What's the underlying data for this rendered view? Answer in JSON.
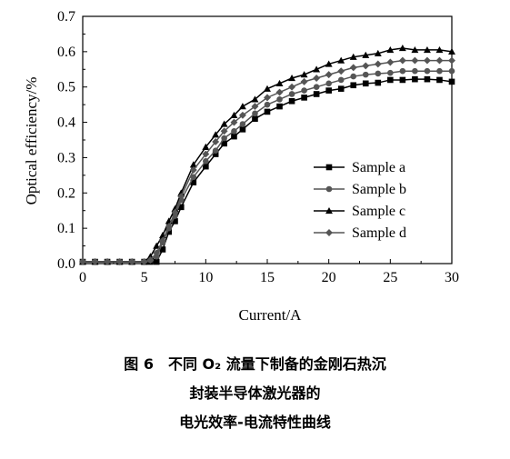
{
  "chart_data": {
    "type": "line",
    "xlabel": "Current/A",
    "ylabel": "Optical efficiency/%",
    "xlim": [
      0,
      30
    ],
    "ylim": [
      0,
      0.7
    ],
    "xticks": [
      "0",
      "5",
      "10",
      "15",
      "20",
      "25",
      "30"
    ],
    "yticks": [
      "0.0",
      "0.1",
      "0.2",
      "0.3",
      "0.4",
      "0.5",
      "0.6",
      "0.7"
    ],
    "grid": false,
    "legend_position": "center-right",
    "x": [
      0,
      1,
      2,
      3,
      4,
      5,
      5.5,
      6,
      6.5,
      7,
      7.5,
      8,
      9,
      10,
      10.8,
      11.5,
      12.3,
      13,
      14,
      15,
      16,
      17,
      18,
      19,
      20,
      21,
      22,
      23,
      24,
      25,
      26,
      27,
      28,
      29,
      30
    ],
    "series": [
      {
        "name": "Sample a",
        "marker": "square",
        "color": "#000000",
        "values": [
          0.005,
          0.005,
          0.005,
          0.005,
          0.005,
          0.005,
          0.005,
          0.005,
          0.04,
          0.09,
          0.12,
          0.16,
          0.23,
          0.275,
          0.31,
          0.34,
          0.36,
          0.38,
          0.41,
          0.43,
          0.445,
          0.46,
          0.47,
          0.48,
          0.49,
          0.495,
          0.505,
          0.51,
          0.512,
          0.52,
          0.52,
          0.522,
          0.522,
          0.52,
          0.515
        ]
      },
      {
        "name": "Sample b",
        "marker": "circle",
        "color": "#555555",
        "values": [
          0.005,
          0.005,
          0.005,
          0.005,
          0.005,
          0.005,
          0.01,
          0.02,
          0.06,
          0.1,
          0.135,
          0.18,
          0.245,
          0.29,
          0.32,
          0.355,
          0.375,
          0.395,
          0.425,
          0.45,
          0.465,
          0.48,
          0.49,
          0.5,
          0.51,
          0.52,
          0.53,
          0.535,
          0.538,
          0.54,
          0.545,
          0.545,
          0.545,
          0.545,
          0.545
        ]
      },
      {
        "name": "Sample c",
        "marker": "triangle",
        "color": "#000000",
        "values": [
          0.005,
          0.005,
          0.005,
          0.005,
          0.005,
          0.005,
          0.02,
          0.05,
          0.08,
          0.12,
          0.155,
          0.2,
          0.28,
          0.33,
          0.365,
          0.395,
          0.42,
          0.445,
          0.465,
          0.495,
          0.51,
          0.525,
          0.535,
          0.55,
          0.565,
          0.575,
          0.585,
          0.59,
          0.595,
          0.605,
          0.61,
          0.605,
          0.605,
          0.605,
          0.6
        ]
      },
      {
        "name": "Sample d",
        "marker": "diamond",
        "color": "#555555",
        "values": [
          0.005,
          0.005,
          0.005,
          0.005,
          0.005,
          0.005,
          0.01,
          0.03,
          0.065,
          0.105,
          0.145,
          0.19,
          0.265,
          0.31,
          0.345,
          0.375,
          0.4,
          0.42,
          0.445,
          0.47,
          0.485,
          0.5,
          0.515,
          0.525,
          0.535,
          0.545,
          0.555,
          0.56,
          0.565,
          0.57,
          0.575,
          0.575,
          0.575,
          0.575,
          0.575
        ]
      }
    ]
  },
  "caption": {
    "line1": "图 6　不同 O₂ 流量下制备的金刚石热沉",
    "line2": "封装半导体激光器的",
    "line3": "电光效率-电流特性曲线"
  }
}
